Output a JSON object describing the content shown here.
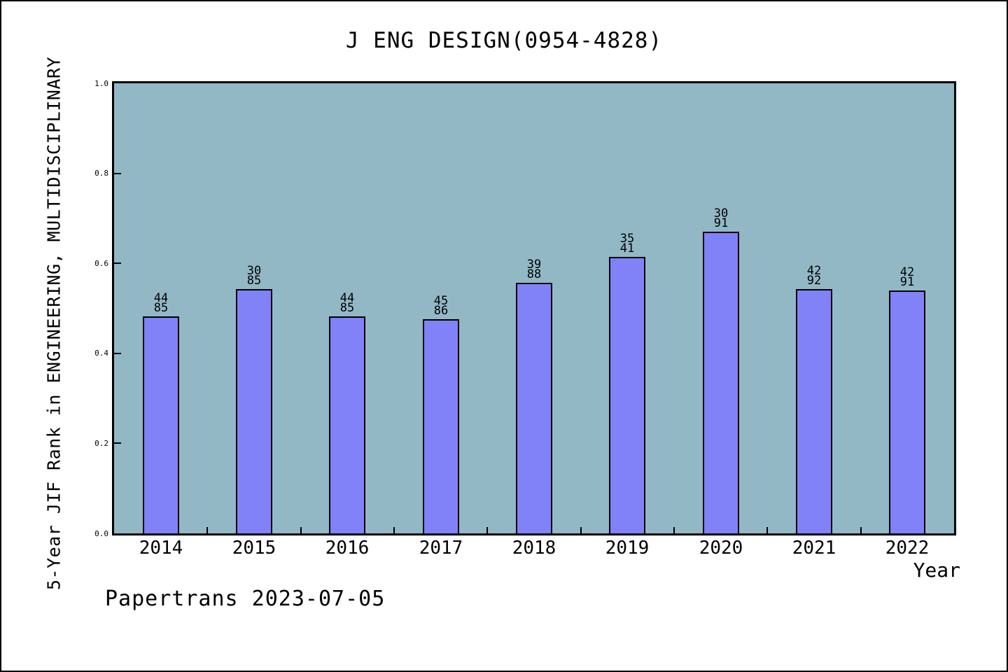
{
  "title": "J ENG DESIGN(0954-4828)",
  "footer": "Papertrans 2023-07-05",
  "chart_data": {
    "type": "bar",
    "title": "J ENG DESIGN(0954-4828)",
    "xlabel": "Year",
    "ylabel": "5-Year JIF Rank in ENGINEERING, MULTIDISCIPLINARY",
    "categories": [
      "2014",
      "2015",
      "2016",
      "2017",
      "2018",
      "2019",
      "2020",
      "2021",
      "2022"
    ],
    "values": [
      0.482,
      0.542,
      0.482,
      0.476,
      0.557,
      0.614,
      0.67,
      0.543,
      0.54
    ],
    "bar_annotations": [
      [
        "44",
        "85"
      ],
      [
        "30",
        "85"
      ],
      [
        "44",
        "85"
      ],
      [
        "45",
        "86"
      ],
      [
        "39",
        "88"
      ],
      [
        "35",
        "41"
      ],
      [
        "30",
        "91"
      ],
      [
        "42",
        "92"
      ],
      [
        "42",
        "91"
      ]
    ],
    "ylim": [
      0.0,
      1.0
    ],
    "yticks": [
      "0.0",
      "0.2",
      "0.4",
      "0.6",
      "0.8",
      "1.0"
    ],
    "grid": false,
    "legend": null,
    "colors": {
      "plot_background": "#92b8c6",
      "bar_fill": "#8182f8",
      "bar_edge": "#000000",
      "text": "#000000",
      "frame": "#000000"
    }
  }
}
